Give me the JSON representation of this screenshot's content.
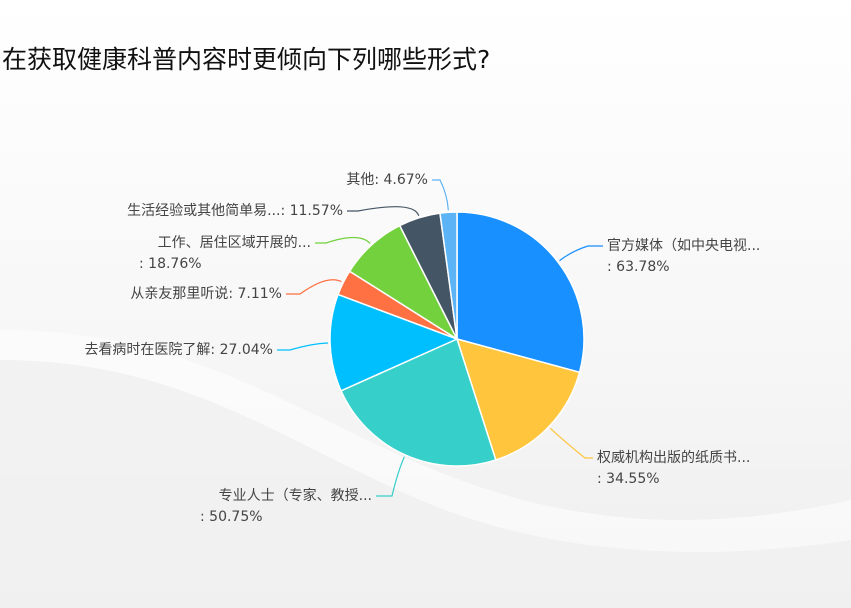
{
  "chart_data": {
    "type": "pie",
    "title": "在获取健康科普内容时更倾向下列哪些形式?",
    "total_label_basis": "percent of respondents",
    "categories": [
      "官方媒体（如中央电视...",
      "权威机构出版的纸质书...",
      "专业人士（专家、教授...",
      "去看病时在医院了解",
      "从亲友那里听说",
      "工作、居住区域开展的...",
      "生活经验或其他简单易...",
      "其他"
    ],
    "values": [
      63.78,
      34.55,
      50.75,
      27.04,
      7.11,
      18.76,
      11.57,
      4.67
    ],
    "value_labels": [
      "63.78%",
      "34.55%",
      "50.75%",
      "27.04%",
      "7.11%",
      "18.76%",
      "11.57%",
      "4.67%"
    ],
    "colors": [
      "#1890ff",
      "#ffc53d",
      "#36cfc9",
      "#00bfff",
      "#ff7043",
      "#73d13d",
      "#445566",
      "#5cb3f5"
    ],
    "start_angle": "top, clockwise",
    "legend": "none"
  }
}
